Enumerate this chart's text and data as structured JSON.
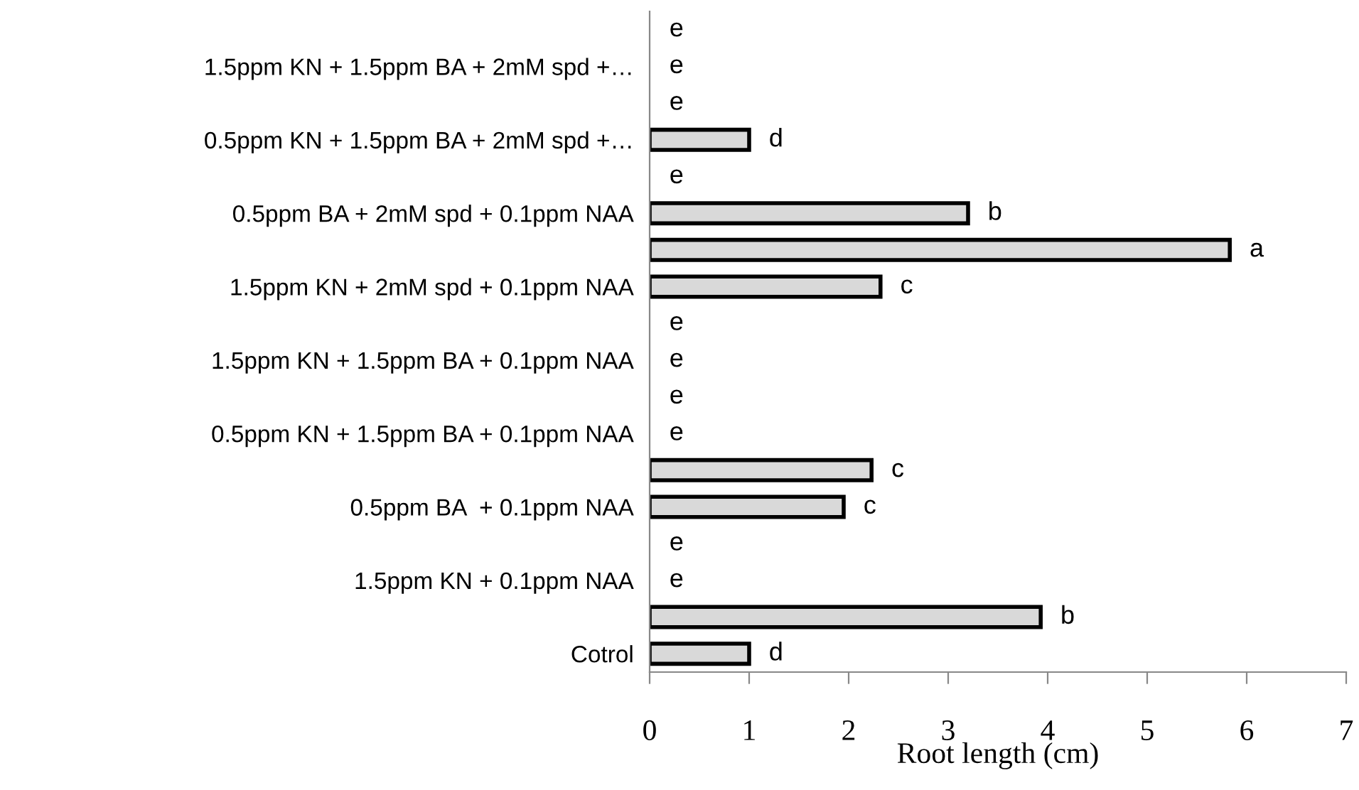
{
  "chart_data": {
    "type": "bar",
    "orientation": "horizontal",
    "xlabel": "Root length (cm)",
    "categories": [
      null,
      "1.5ppm KN + 1.5ppm BA + 2mM spd +…",
      null,
      "0.5ppm KN + 1.5ppm BA + 2mM spd +…",
      null,
      "0.5ppm BA + 2mM spd + 0.1ppm NAA",
      null,
      "1.5ppm KN + 2mM spd + 0.1ppm NAA",
      null,
      "1.5ppm KN + 1.5ppm BA + 0.1ppm NAA",
      null,
      "0.5ppm KN + 1.5ppm BA + 0.1ppm NAA",
      null,
      "0.5ppm BA  + 0.1ppm NAA",
      null,
      "1.5ppm KN + 0.1ppm NAA",
      null,
      "Cotrol"
    ],
    "values": [
      0,
      0,
      0,
      1.0,
      0,
      3.2,
      5.83,
      2.32,
      0,
      0,
      0,
      0,
      2.23,
      1.95,
      0,
      0,
      3.93,
      1.0
    ],
    "value_labels": [
      "e",
      "e",
      "e",
      "d",
      "e",
      "b",
      "a",
      "c",
      "e",
      "e",
      "e",
      "e",
      "c",
      "c",
      "e",
      "e",
      "b",
      "d"
    ],
    "color": "#d9d9d9",
    "xlim": [
      0,
      7
    ],
    "xticks": [
      0,
      1,
      2,
      3,
      4,
      5,
      6,
      7
    ],
    "grid": false
  }
}
